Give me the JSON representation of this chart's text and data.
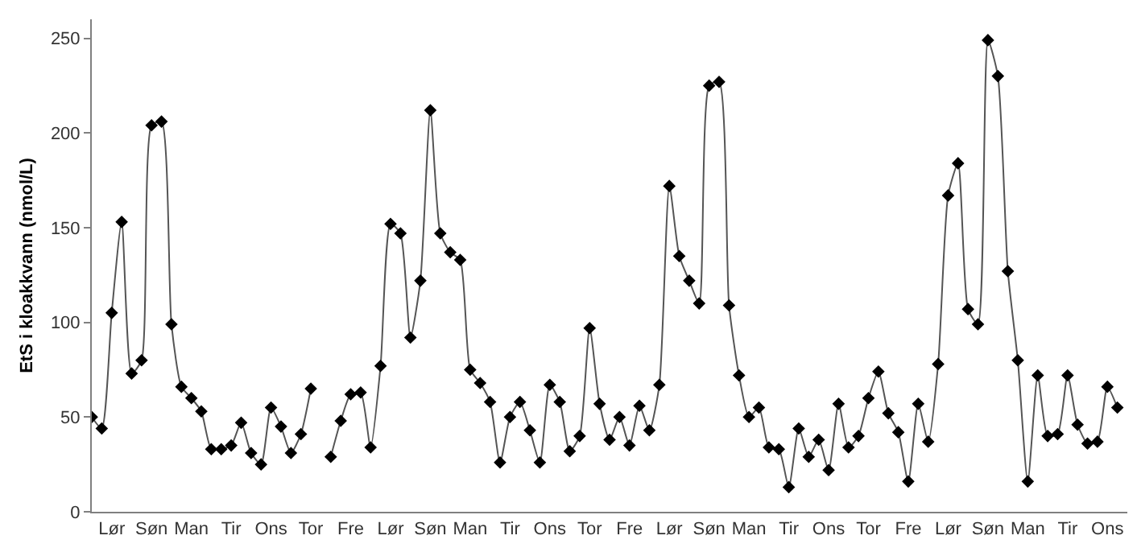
{
  "chart_data": {
    "type": "line",
    "ylabel": "EtS i kloakkvann (nmol/L)",
    "categories": [
      null,
      null,
      "Lør",
      null,
      null,
      null,
      "Søn",
      null,
      null,
      null,
      "Man",
      null,
      null,
      null,
      "Tir",
      null,
      null,
      null,
      "Ons",
      null,
      null,
      null,
      "Tor",
      null,
      null,
      null,
      "Fre",
      null,
      null,
      null,
      "Lør",
      null,
      null,
      null,
      "Søn",
      null,
      null,
      null,
      "Man",
      null,
      null,
      null,
      "Tir",
      null,
      null,
      null,
      "Ons",
      null,
      null,
      null,
      "Tor",
      null,
      null,
      null,
      "Fre",
      null,
      null,
      null,
      "Lør",
      null,
      null,
      null,
      "Søn",
      null,
      null,
      null,
      "Man",
      null,
      null,
      null,
      "Tir",
      null,
      null,
      null,
      "Ons",
      null,
      null,
      null,
      "Tor",
      null,
      null,
      null,
      "Fre",
      null,
      null,
      null,
      "Lør",
      null,
      null,
      null,
      "Søn",
      null,
      null,
      null,
      "Man",
      null,
      null,
      null,
      "Tir",
      null,
      null,
      null,
      "Ons",
      null
    ],
    "series": [
      {
        "color": "#555555",
        "values": [
          50,
          44,
          105,
          153,
          73,
          80,
          204,
          206,
          99,
          66,
          60,
          53,
          33,
          33,
          35,
          47,
          31,
          25,
          55,
          45,
          31,
          41,
          65,
          null,
          29,
          48,
          62,
          63,
          34,
          77,
          152,
          147,
          92,
          122,
          212,
          147,
          137,
          133,
          75,
          68,
          58,
          26,
          50,
          58,
          43,
          26,
          67,
          58,
          32,
          40,
          97,
          57,
          38,
          50,
          35,
          56,
          43,
          67,
          172,
          135,
          122,
          110,
          225,
          227,
          109,
          72,
          50,
          55,
          34,
          33,
          13,
          44,
          29,
          38,
          22,
          57,
          34,
          40,
          60,
          74,
          52,
          42,
          16,
          57,
          37,
          78,
          167,
          184,
          107,
          99,
          249,
          230,
          127,
          80,
          16,
          72,
          40,
          41,
          72,
          46,
          36,
          37,
          66,
          55
        ]
      }
    ],
    "marker": "diamond",
    "ylim": [
      0,
      260
    ],
    "yticks": [
      0,
      50,
      100,
      150,
      200,
      250
    ]
  }
}
